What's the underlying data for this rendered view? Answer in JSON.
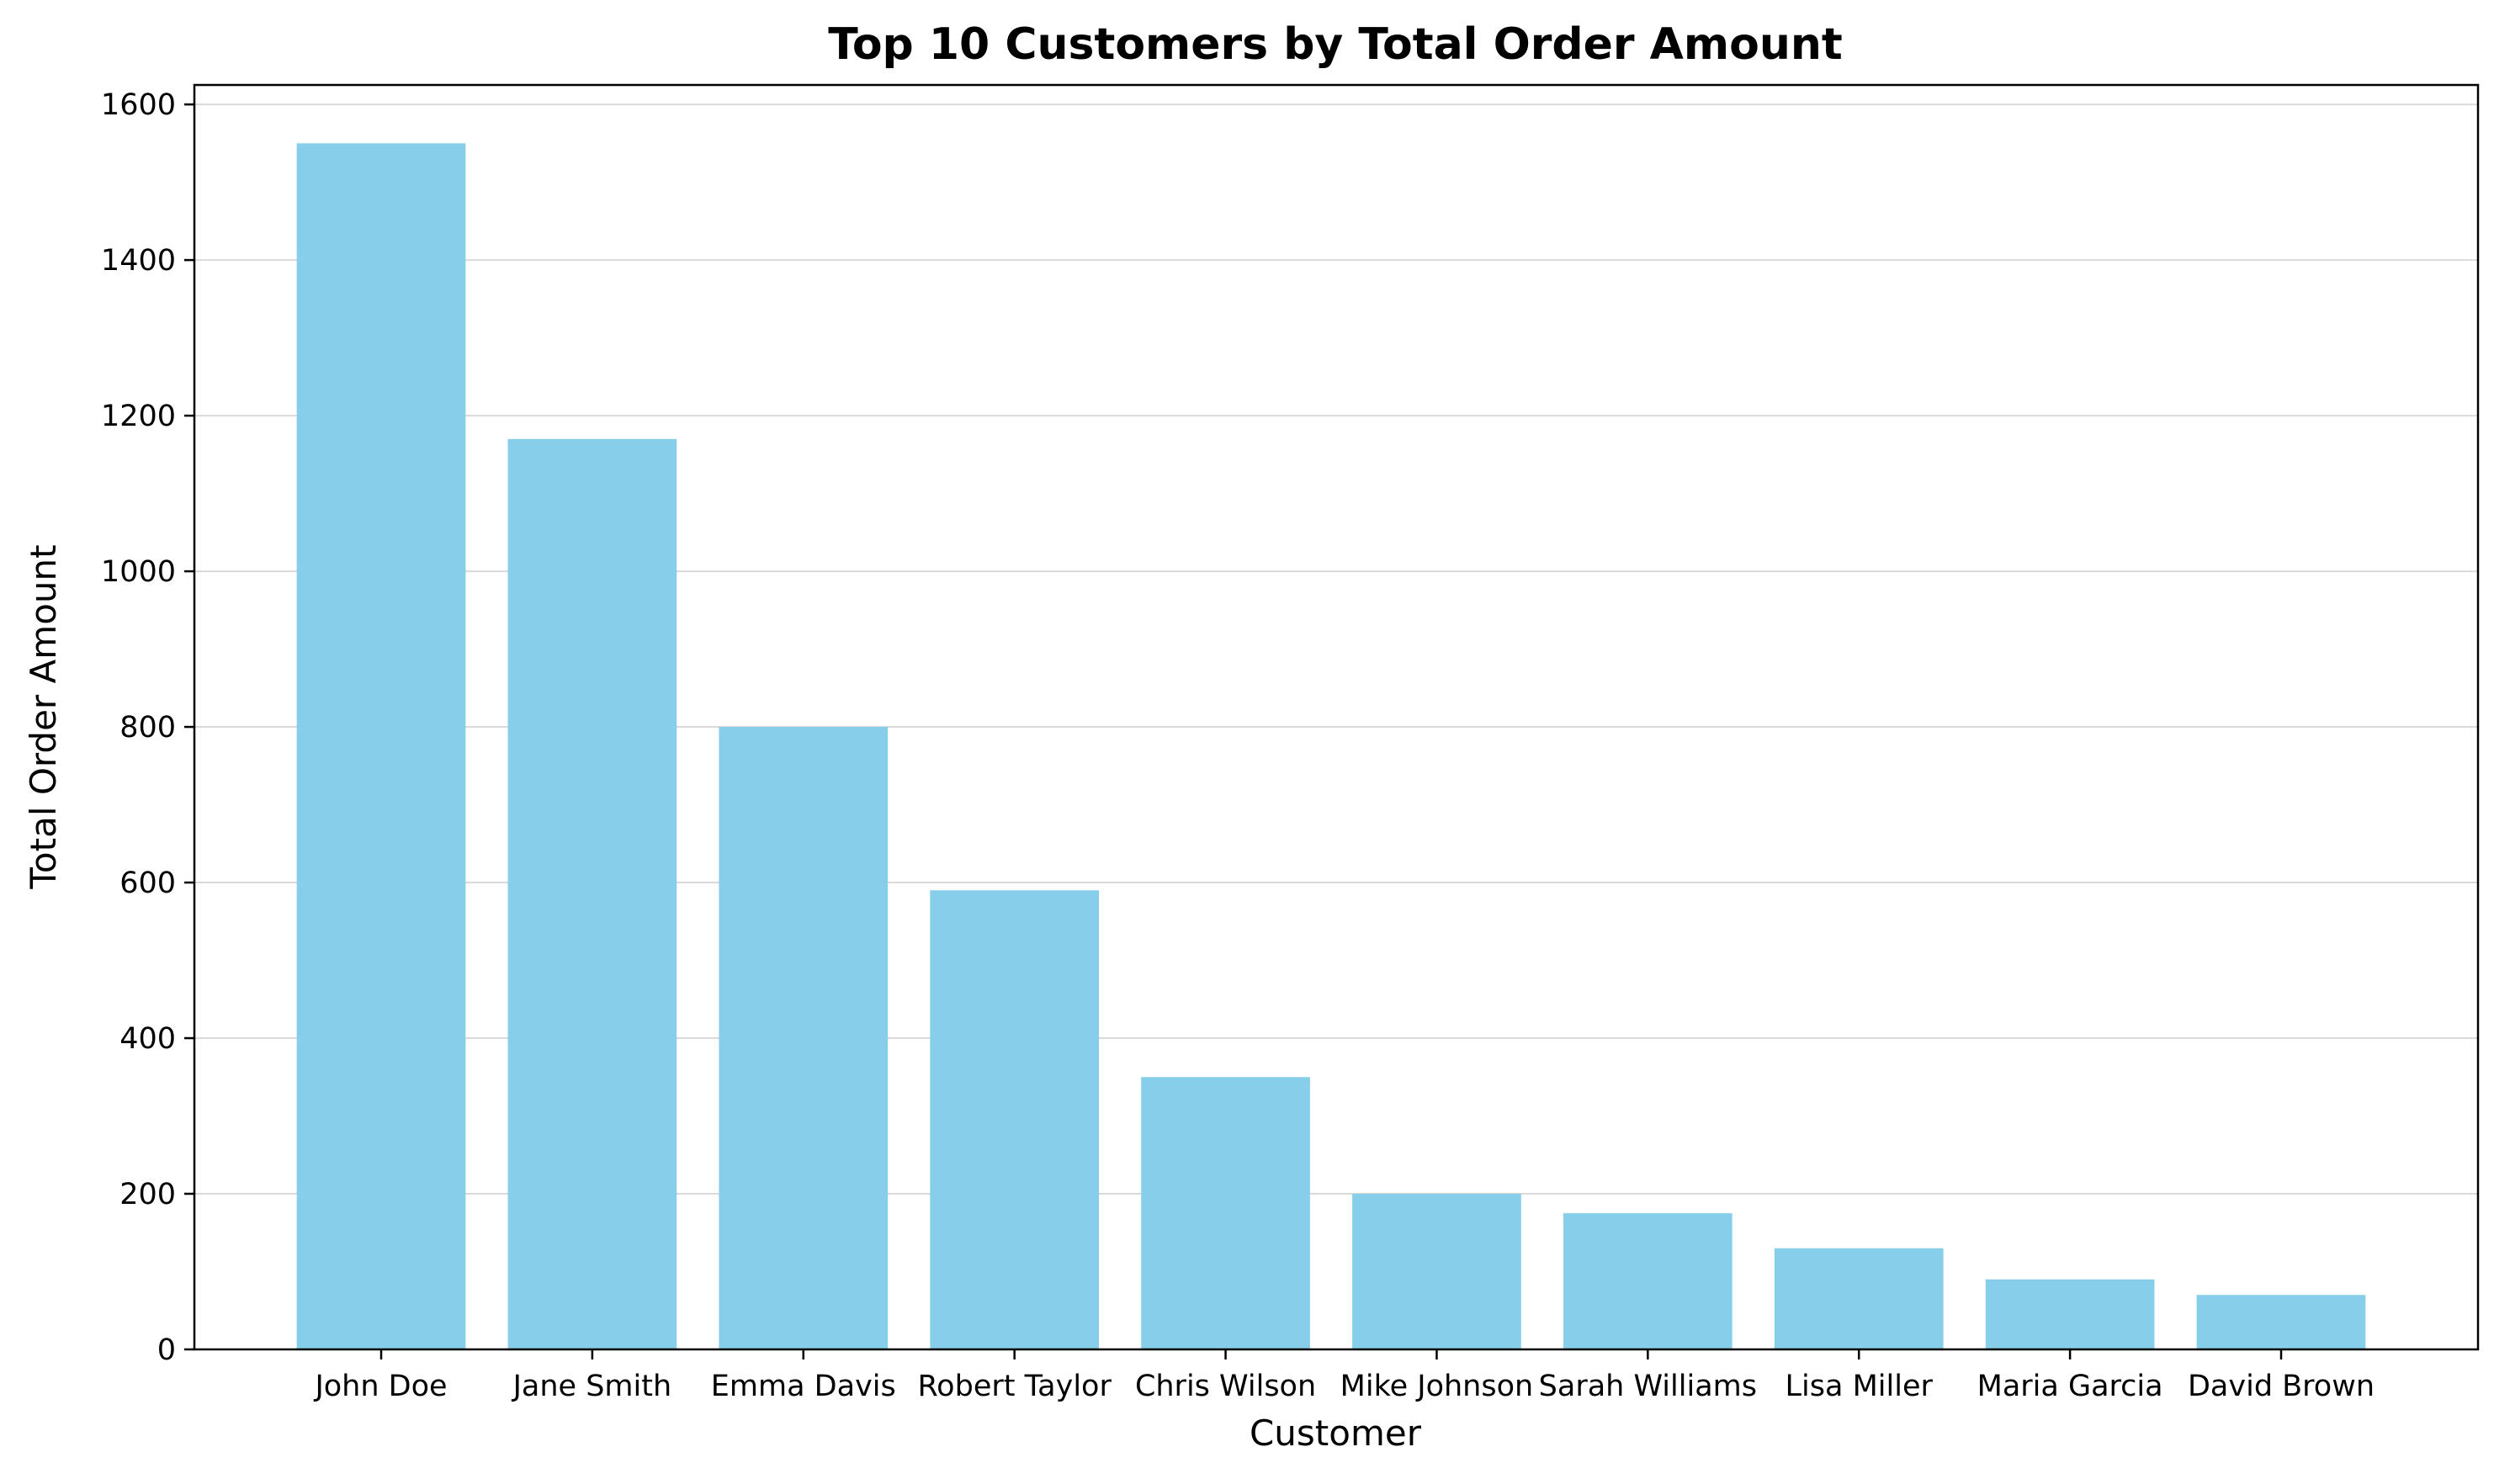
{
  "chart_data": {
    "type": "bar",
    "title": "Top 10 Customers by Total Order Amount",
    "xlabel": "Customer",
    "ylabel": "Total Order Amount",
    "categories": [
      "John Doe",
      "Jane Smith",
      "Emma Davis",
      "Robert Taylor",
      "Chris Wilson",
      "Mike Johnson",
      "Sarah Williams",
      "Lisa Miller",
      "Maria Garcia",
      "David Brown"
    ],
    "values": [
      1550,
      1170,
      800,
      590,
      350,
      200,
      175,
      130,
      90,
      70
    ],
    "ylim": [
      0,
      1625
    ],
    "yticks": [
      0,
      200,
      400,
      600,
      800,
      1000,
      1200,
      1400,
      1600
    ],
    "grid": "y",
    "bar_color": "#87ceeb"
  }
}
